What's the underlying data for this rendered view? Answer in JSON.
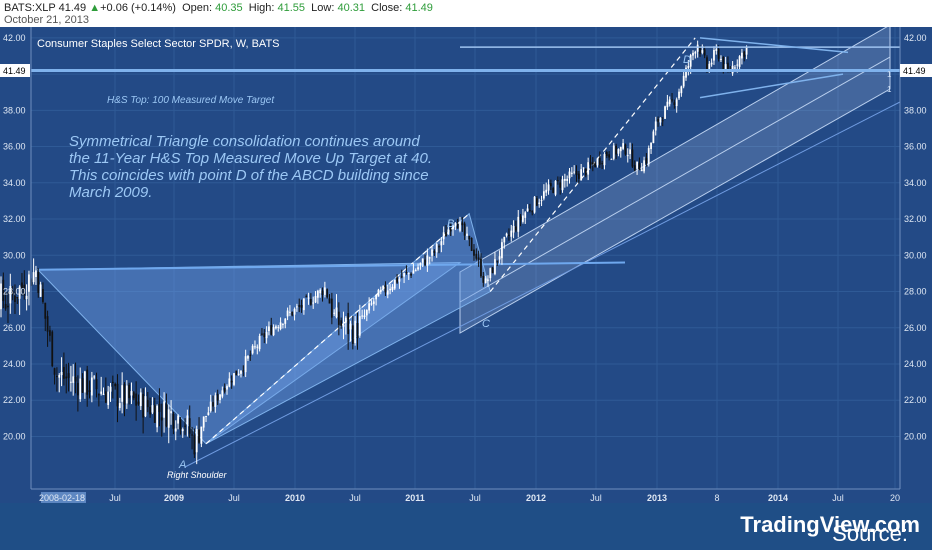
{
  "header": {
    "symbol": "BATS:XLP",
    "last": "41.49",
    "change_arrow": "▲",
    "change": "+0.06 (+0.14%)",
    "open_label": "Open:",
    "open": "40.35",
    "high_label": "High:",
    "high": "41.55",
    "low_label": "Low:",
    "low": "40.31",
    "close_label": "Close:",
    "close": "41.49",
    "date": "October 21, 2013"
  },
  "chart_title": "Consumer Staples Select Sector SPDR, W, BATS",
  "annotation_lines": [
    "Symmetrical Triangle consolidation continues around",
    "the 11-Year H&S Top Measured Move Up Target at 40.",
    "This coincides with point D of the ABCD building since",
    "March 2009."
  ],
  "labels": {
    "hs_target": "H&S Top: 100 Measured Move Target",
    "point_a": "A",
    "point_b": "B",
    "point_c": "C",
    "point_d": "D",
    "right_shoulder": "Right Shoulder",
    "marker_one": "1"
  },
  "price_tag": "41.49",
  "source": {
    "prefix": "Source: ",
    "brand": "TradingView.com"
  },
  "colors": {
    "background": "#234a86",
    "grid": "#2f5a96",
    "candle_up": "#ffffff",
    "candle_down": "#111111",
    "drawing": "#7fb2ec",
    "annotation": "#9cc8f5"
  },
  "chart_data": {
    "type": "candlestick",
    "title": "Consumer Staples Select Sector SPDR, W, BATS",
    "timeframe": "Weekly",
    "y_axis_ticks": [
      "20.00",
      "22.00",
      "24.00",
      "26.00",
      "28.00",
      "30.00",
      "32.00",
      "34.00",
      "36.00",
      "38.00",
      "40.00",
      "42.00"
    ],
    "x_axis_ticks": [
      "2008-02-18",
      "Jul",
      "2009",
      "Jul",
      "2010",
      "Jul",
      "2011",
      "Jul",
      "2012",
      "Jul",
      "2013",
      "8",
      "2014",
      "Jul",
      "20"
    ],
    "ylim": [
      19.0,
      42.9
    ],
    "grid": true,
    "anchors": [
      {
        "date": "2008-02",
        "close": 28.8
      },
      {
        "date": "2008-04",
        "close": 28.6
      },
      {
        "date": "2008-06",
        "close": 27.4
      },
      {
        "date": "2008-08",
        "close": 28.5
      },
      {
        "date": "2008-09",
        "close": 29.2
      },
      {
        "date": "2008-10",
        "close": 26.2
      },
      {
        "date": "2008-11",
        "close": 23.4
      },
      {
        "date": "2008-12",
        "close": 23.2
      },
      {
        "date": "2009-02",
        "close": 21.0
      },
      {
        "date": "2009-03",
        "close": 19.6
      },
      {
        "date": "2009-04",
        "close": 21.0
      },
      {
        "date": "2009-06",
        "close": 22.8
      },
      {
        "date": "2009-08",
        "close": 24.0
      },
      {
        "date": "2009-10",
        "close": 25.6
      },
      {
        "date": "2009-12",
        "close": 26.6
      },
      {
        "date": "2010-02",
        "close": 27.3
      },
      {
        "date": "2010-04",
        "close": 28.2
      },
      {
        "date": "2010-05",
        "close": 26.4
      },
      {
        "date": "2010-07",
        "close": 25.8
      },
      {
        "date": "2010-09",
        "close": 27.6
      },
      {
        "date": "2010-11",
        "close": 28.6
      },
      {
        "date": "2011-01",
        "close": 29.2
      },
      {
        "date": "2011-03",
        "close": 30.2
      },
      {
        "date": "2011-05",
        "close": 32.1
      },
      {
        "date": "2011-06",
        "close": 31.0
      },
      {
        "date": "2011-07",
        "close": 30.1
      },
      {
        "date": "2011-08",
        "close": 28.4
      },
      {
        "date": "2011-09",
        "close": 29.6
      },
      {
        "date": "2011-10",
        "close": 30.8
      },
      {
        "date": "2011-12",
        "close": 32.4
      },
      {
        "date": "2012-02",
        "close": 33.5
      },
      {
        "date": "2012-04",
        "close": 34.2
      },
      {
        "date": "2012-06",
        "close": 34.7
      },
      {
        "date": "2012-08",
        "close": 35.6
      },
      {
        "date": "2012-10",
        "close": 35.9
      },
      {
        "date": "2012-11",
        "close": 34.8
      },
      {
        "date": "2012-12",
        "close": 35.3
      },
      {
        "date": "2013-01",
        "close": 37.4
      },
      {
        "date": "2013-03",
        "close": 38.8
      },
      {
        "date": "2013-05",
        "close": 41.8
      },
      {
        "date": "2013-06",
        "close": 40.3
      },
      {
        "date": "2013-07",
        "close": 41.3
      },
      {
        "date": "2013-08",
        "close": 40.0
      },
      {
        "date": "2013-09",
        "close": 40.8
      },
      {
        "date": "2013-10",
        "close": 41.49
      }
    ],
    "reference_levels": [
      {
        "label": "H&S Top: 100 Measured Move Target",
        "value": 40.2
      },
      {
        "label": "1",
        "value": 41.49
      }
    ],
    "pattern_points": [
      {
        "label": "A",
        "date": "2009-03",
        "value": 19.6
      },
      {
        "label": "B",
        "date": "2011-05",
        "value": 32.2
      },
      {
        "label": "C",
        "date": "2011-08",
        "value": 28.0
      },
      {
        "label": "D",
        "date": "2013-05",
        "value": 41.8
      }
    ]
  }
}
